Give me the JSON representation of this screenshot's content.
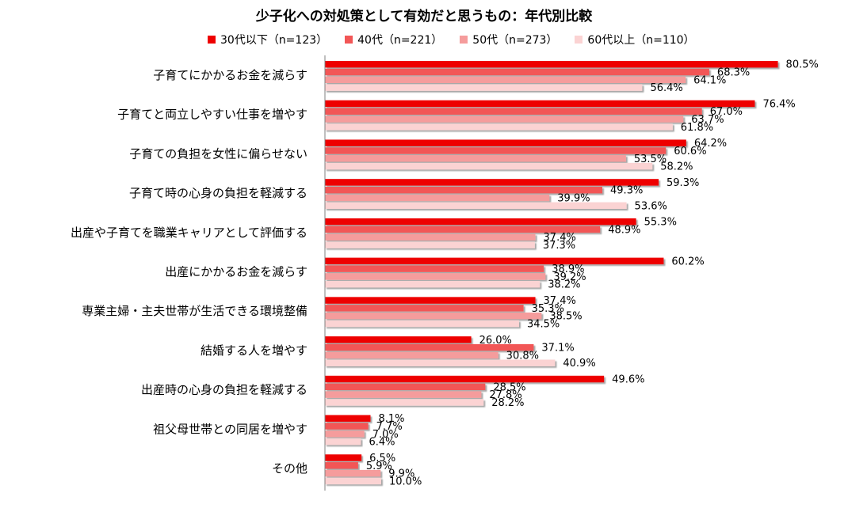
{
  "chart_data": {
    "type": "bar",
    "orientation": "horizontal",
    "title": "少子化への対処策として有効だと思うもの：年代別比較",
    "xlabel": "",
    "ylabel": "",
    "xlim": [
      0,
      100
    ],
    "grid": false,
    "legend_position": "top",
    "value_suffix": "%",
    "categories": [
      "子育てにかかるお金を減らす",
      "子育てと両立しやすい仕事を増やす",
      "子育ての負担を女性に偏らせない",
      "子育て時の心身の負担を軽減する",
      "出産や子育てを職業キャリアとして評価する",
      "出産にかかるお金を減らす",
      "専業主婦・主夫世帯が生活できる環境整備",
      "結婚する人を増やす",
      "出産時の心身の負担を軽減する",
      "祖父母世帯との同居を増やす",
      "その他"
    ],
    "series": [
      {
        "name": "30代以下（n=123）",
        "color": "#ee0000",
        "values": [
          80.5,
          76.4,
          64.2,
          59.3,
          55.3,
          60.2,
          37.4,
          26.0,
          49.6,
          8.1,
          6.5
        ]
      },
      {
        "name": "40代（n=221）",
        "color": "#f25656",
        "values": [
          68.3,
          67.0,
          60.6,
          49.3,
          48.9,
          38.9,
          35.3,
          37.1,
          28.5,
          7.7,
          5.9
        ]
      },
      {
        "name": "50代（n=273）",
        "color": "#f59c9c",
        "values": [
          64.1,
          63.7,
          53.5,
          39.9,
          37.4,
          39.2,
          38.5,
          30.8,
          27.8,
          7.0,
          9.9
        ]
      },
      {
        "name": "60代以上（n=110）",
        "color": "#fbd3d3",
        "values": [
          56.4,
          61.8,
          58.2,
          53.6,
          37.3,
          38.2,
          34.5,
          40.9,
          28.2,
          6.4,
          10.0
        ]
      }
    ]
  }
}
